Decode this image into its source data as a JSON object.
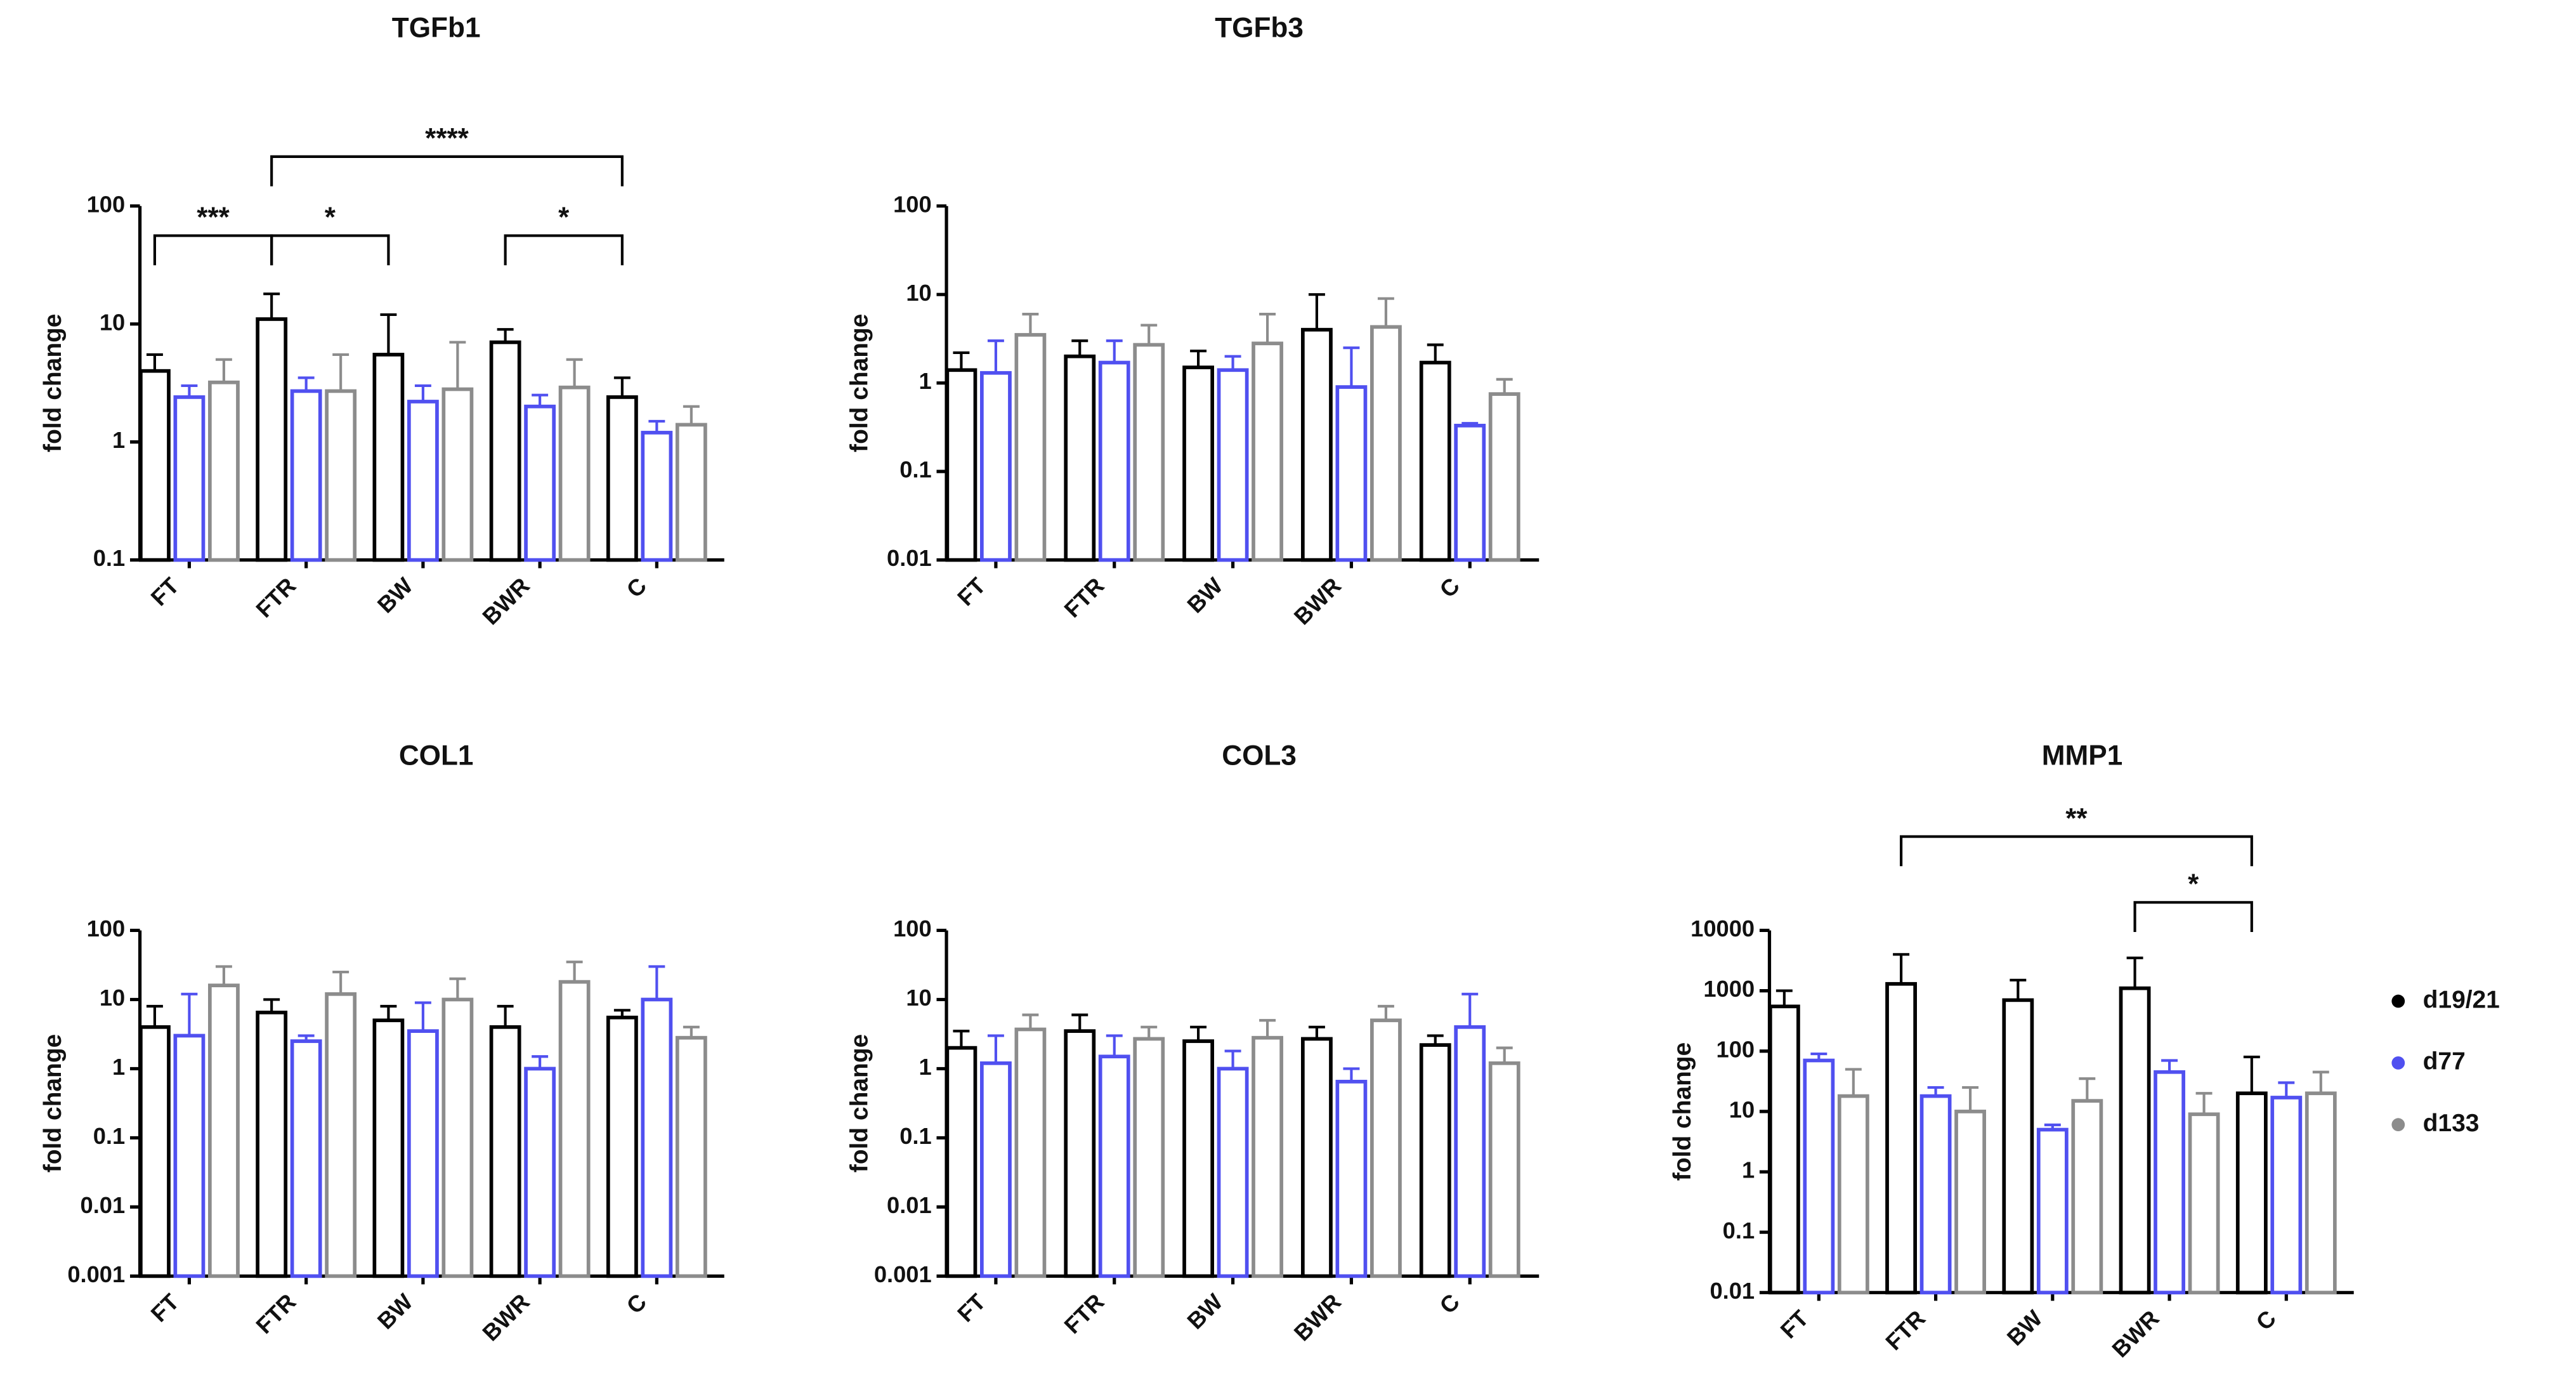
{
  "chart_data": [
    {
      "type": "bar",
      "title": "TGFb1",
      "y_label": "fold change",
      "log_scale": true,
      "categories": [
        "FT",
        "FTR",
        "BW",
        "BWR",
        "C"
      ],
      "ylim": [
        0.1,
        100
      ],
      "yticks": [
        0.1,
        1,
        10,
        100
      ],
      "series": [
        {
          "color": "#000000",
          "values": [
            4,
            11,
            5.5,
            7,
            2.4
          ],
          "errors": [
            1.5,
            7,
            6.5,
            2,
            1.1
          ]
        },
        {
          "color": "#5050f0",
          "values": [
            2.4,
            2.7,
            2.2,
            2.0,
            1.2
          ],
          "errors": [
            0.6,
            0.8,
            0.8,
            0.5,
            0.3
          ]
        },
        {
          "color": "#8c8c8c",
          "values": [
            3.2,
            2.7,
            2.8,
            2.9,
            1.4
          ],
          "errors": [
            1.8,
            2.8,
            4.2,
            2.1,
            0.6
          ]
        }
      ],
      "annotations": [
        {
          "text": "***",
          "from": "FT",
          "to": "FTR"
        },
        {
          "text": "*",
          "from": "FTR",
          "to": "BW"
        },
        {
          "text": "****",
          "from": "FTR",
          "to": "C"
        },
        {
          "text": "*",
          "from": "BWR",
          "to": "C"
        }
      ]
    },
    {
      "type": "bar",
      "title": "TGFb3",
      "y_label": "fold change",
      "log_scale": true,
      "categories": [
        "FT",
        "FTR",
        "BW",
        "BWR",
        "C"
      ],
      "ylim": [
        0.01,
        100
      ],
      "yticks": [
        0.01,
        0.1,
        1,
        10,
        100
      ],
      "series": [
        {
          "color": "#000000",
          "values": [
            1.4,
            2.0,
            1.5,
            4.0,
            1.7
          ],
          "errors": [
            0.8,
            1.0,
            0.8,
            6.0,
            1.0
          ]
        },
        {
          "color": "#5050f0",
          "values": [
            1.3,
            1.7,
            1.4,
            0.9,
            0.33
          ],
          "errors": [
            1.7,
            1.3,
            0.6,
            1.6,
            0.02
          ]
        },
        {
          "color": "#8c8c8c",
          "values": [
            3.5,
            2.7,
            2.8,
            4.3,
            0.75
          ],
          "errors": [
            2.5,
            1.8,
            3.2,
            4.7,
            0.35
          ]
        }
      ]
    },
    {
      "type": "bar",
      "title": "COL1",
      "y_label": "fold change",
      "log_scale": true,
      "categories": [
        "FT",
        "FTR",
        "BW",
        "BWR",
        "C"
      ],
      "ylim": [
        0.001,
        100
      ],
      "yticks": [
        0.001,
        0.01,
        0.1,
        1,
        10,
        100
      ],
      "series": [
        {
          "color": "#000000",
          "values": [
            4,
            6.5,
            5,
            4,
            5.5
          ],
          "errors": [
            4,
            3.5,
            3,
            4,
            1.5
          ]
        },
        {
          "color": "#5050f0",
          "values": [
            3,
            2.5,
            3.5,
            1.0,
            10
          ],
          "errors": [
            9,
            0.5,
            5.5,
            0.5,
            20
          ]
        },
        {
          "color": "#8c8c8c",
          "values": [
            16,
            12,
            10,
            18,
            2.8
          ],
          "errors": [
            14,
            13,
            10,
            17,
            1.2
          ]
        }
      ]
    },
    {
      "type": "bar",
      "title": "COL3",
      "y_label": "fold change",
      "log_scale": true,
      "categories": [
        "FT",
        "FTR",
        "BW",
        "BWR",
        "C"
      ],
      "ylim": [
        0.001,
        100
      ],
      "yticks": [
        0.001,
        0.01,
        0.1,
        1,
        10,
        100
      ],
      "series": [
        {
          "color": "#000000",
          "values": [
            2,
            3.5,
            2.5,
            2.7,
            2.2
          ],
          "errors": [
            1.5,
            2.5,
            1.5,
            1.3,
            0.8
          ]
        },
        {
          "color": "#5050f0",
          "values": [
            1.2,
            1.5,
            1.0,
            0.65,
            4.0
          ],
          "errors": [
            1.8,
            1.5,
            0.8,
            0.35,
            8
          ]
        },
        {
          "color": "#8c8c8c",
          "values": [
            3.7,
            2.7,
            2.8,
            5,
            1.2
          ],
          "errors": [
            2.3,
            1.3,
            2.2,
            3,
            0.8
          ]
        }
      ]
    },
    {
      "type": "bar",
      "title": "MMP1",
      "y_label": "fold change",
      "log_scale": true,
      "legend": "right",
      "categories": [
        "FT",
        "FTR",
        "BW",
        "BWR",
        "C"
      ],
      "ylim": [
        0.01,
        10000
      ],
      "yticks": [
        0.01,
        0.1,
        1,
        10,
        100,
        1000,
        10000
      ],
      "series": [
        {
          "name": "d19/21",
          "color": "#000000",
          "values": [
            550,
            1300,
            700,
            1100,
            20
          ],
          "errors": [
            450,
            2700,
            800,
            2400,
            60
          ]
        },
        {
          "name": "d77",
          "color": "#5050f0",
          "values": [
            70,
            18,
            5,
            45,
            17
          ],
          "errors": [
            20,
            7,
            1,
            25,
            13
          ]
        },
        {
          "name": "d133",
          "color": "#8c8c8c",
          "values": [
            18,
            10,
            15,
            9,
            20
          ],
          "errors": [
            32,
            15,
            20,
            11,
            25
          ]
        }
      ],
      "annotations": [
        {
          "text": "**",
          "from": "FTR",
          "to": "C"
        },
        {
          "text": "*",
          "from": "BWR",
          "to": "C"
        }
      ]
    }
  ]
}
